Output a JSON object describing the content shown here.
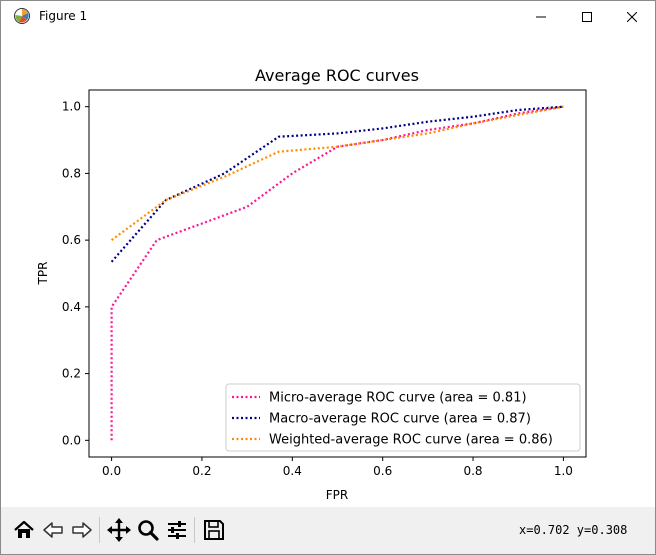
{
  "window": {
    "title": "Figure 1",
    "icon": "matplotlib-icon"
  },
  "toolbar": {
    "tools": [
      "home-icon",
      "back-icon",
      "forward-icon",
      "pan-icon",
      "zoom-icon",
      "configure-subplots-icon",
      "save-icon"
    ],
    "coords": "x=0.702 y=0.308"
  },
  "chart_data": {
    "type": "line",
    "title": "Average ROC curves",
    "xlabel": "FPR",
    "ylabel": "TPR",
    "xlim": [
      -0.05,
      1.05
    ],
    "ylim": [
      -0.05,
      1.05
    ],
    "xticks": [
      0.0,
      0.2,
      0.4,
      0.6,
      0.8,
      1.0
    ],
    "yticks": [
      0.0,
      0.2,
      0.4,
      0.6,
      0.8,
      1.0
    ],
    "xtick_labels": [
      "0.0",
      "0.2",
      "0.4",
      "0.6",
      "0.8",
      "1.0"
    ],
    "ytick_labels": [
      "0.0",
      "0.2",
      "0.4",
      "0.6",
      "0.8",
      "1.0"
    ],
    "grid": false,
    "legend_position": "lower right",
    "series": [
      {
        "name": "Micro-average ROC curve (area = 0.81)",
        "color": "#ff1493",
        "linestyle": "dotted",
        "x": [
          0.0,
          0.0,
          0.1,
          0.2,
          0.3,
          0.4,
          0.5,
          0.6,
          0.7,
          0.8,
          0.9,
          1.0
        ],
        "y": [
          0.0,
          0.4,
          0.6,
          0.65,
          0.7,
          0.8,
          0.88,
          0.9,
          0.93,
          0.95,
          0.98,
          1.0
        ]
      },
      {
        "name": "Macro-average ROC curve (area = 0.87)",
        "color": "#000080",
        "linestyle": "dotted",
        "x": [
          0.0,
          0.12,
          0.25,
          0.37,
          0.5,
          0.6,
          0.7,
          0.8,
          0.9,
          1.0
        ],
        "y": [
          0.535,
          0.72,
          0.8,
          0.91,
          0.92,
          0.935,
          0.955,
          0.97,
          0.99,
          1.0
        ]
      },
      {
        "name": "Weighted-average ROC curve (area = 0.86)",
        "color": "#ff8c00",
        "linestyle": "dotted",
        "x": [
          0.0,
          0.12,
          0.25,
          0.37,
          0.5,
          0.6,
          0.7,
          0.8,
          0.9,
          1.0
        ],
        "y": [
          0.6,
          0.72,
          0.79,
          0.865,
          0.88,
          0.9,
          0.92,
          0.95,
          0.975,
          1.0
        ]
      }
    ]
  }
}
